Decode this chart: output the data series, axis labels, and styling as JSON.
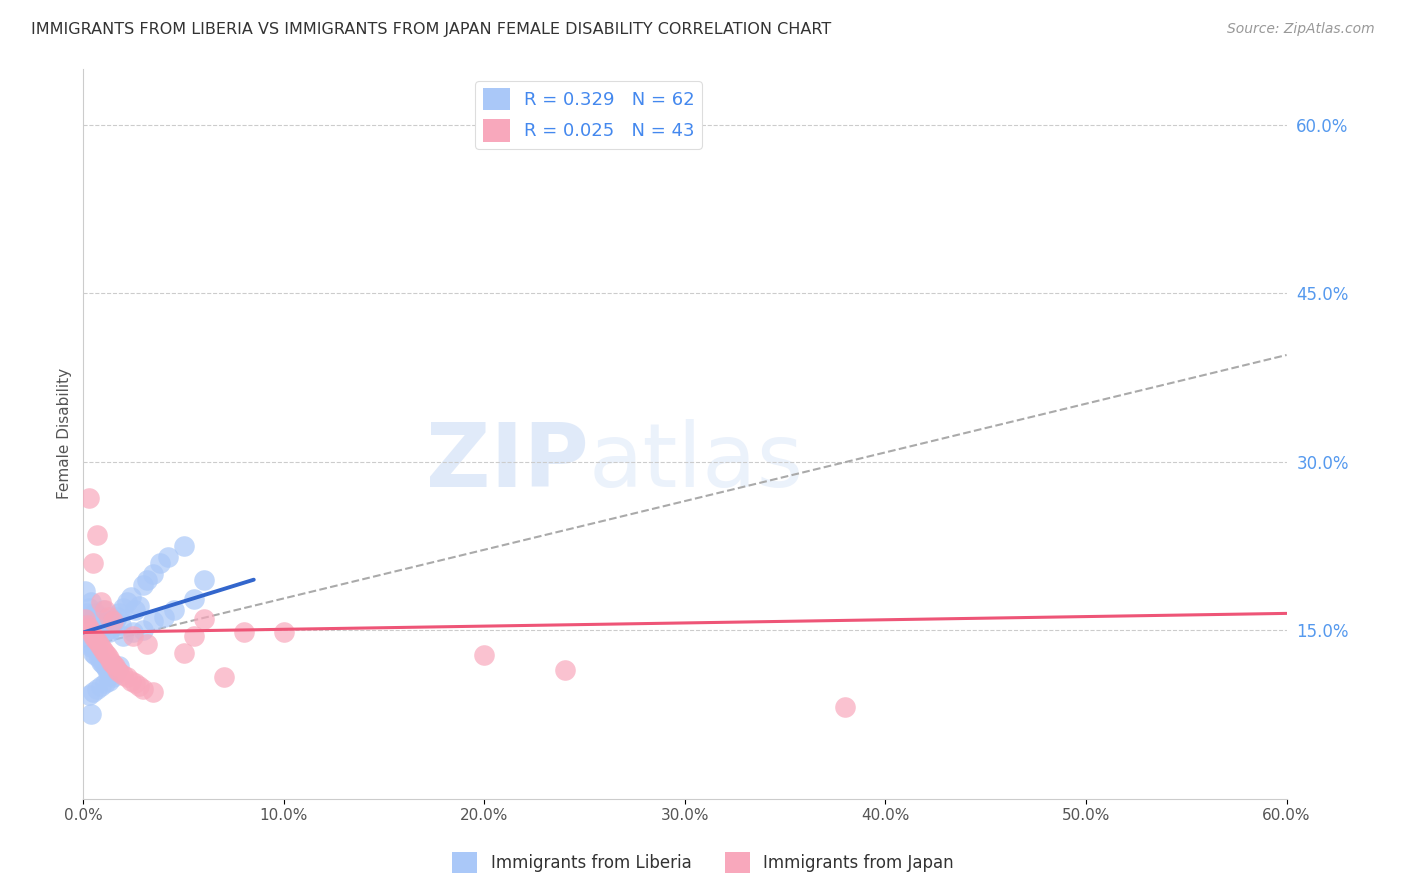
{
  "title": "IMMIGRANTS FROM LIBERIA VS IMMIGRANTS FROM JAPAN FEMALE DISABILITY CORRELATION CHART",
  "source": "Source: ZipAtlas.com",
  "ylabel": "Female Disability",
  "legend_label1": "Immigrants from Liberia",
  "legend_label2": "Immigrants from Japan",
  "R1": 0.329,
  "N1": 62,
  "R2": 0.025,
  "N2": 43,
  "color1": "#aac8f8",
  "color2": "#f8a8bc",
  "color1_line": "#3366cc",
  "color2_line": "#ee5577",
  "xlim": [
    0.0,
    0.6
  ],
  "ylim": [
    0.0,
    0.65
  ],
  "xtick_labels": [
    "0.0%",
    "10.0%",
    "20.0%",
    "30.0%",
    "40.0%",
    "50.0%",
    "60.0%"
  ],
  "xtick_values": [
    0.0,
    0.1,
    0.2,
    0.3,
    0.4,
    0.5,
    0.6
  ],
  "ytick_right_values": [
    0.15,
    0.3,
    0.45,
    0.6
  ],
  "ytick_right_labels": [
    "15.0%",
    "30.0%",
    "45.0%",
    "60.0%"
  ],
  "background_color": "#ffffff",
  "watermark_zip": "ZIP",
  "watermark_atlas": "atlas",
  "liberia_x": [
    0.001,
    0.002,
    0.003,
    0.004,
    0.005,
    0.006,
    0.007,
    0.008,
    0.009,
    0.01,
    0.011,
    0.012,
    0.013,
    0.014,
    0.015,
    0.016,
    0.017,
    0.018,
    0.019,
    0.02,
    0.022,
    0.024,
    0.026,
    0.028,
    0.03,
    0.032,
    0.035,
    0.038,
    0.042,
    0.05,
    0.002,
    0.003,
    0.004,
    0.005,
    0.006,
    0.007,
    0.008,
    0.009,
    0.01,
    0.011,
    0.012,
    0.013,
    0.014,
    0.015,
    0.016,
    0.017,
    0.018,
    0.003,
    0.005,
    0.007,
    0.009,
    0.011,
    0.013,
    0.02,
    0.025,
    0.03,
    0.035,
    0.04,
    0.045,
    0.055,
    0.004,
    0.06
  ],
  "liberia_y": [
    0.185,
    0.165,
    0.17,
    0.175,
    0.16,
    0.165,
    0.155,
    0.158,
    0.162,
    0.168,
    0.155,
    0.15,
    0.148,
    0.152,
    0.16,
    0.158,
    0.162,
    0.165,
    0.155,
    0.17,
    0.175,
    0.18,
    0.168,
    0.172,
    0.19,
    0.195,
    0.2,
    0.21,
    0.215,
    0.225,
    0.14,
    0.138,
    0.135,
    0.13,
    0.128,
    0.132,
    0.125,
    0.122,
    0.12,
    0.118,
    0.115,
    0.112,
    0.11,
    0.108,
    0.113,
    0.115,
    0.118,
    0.092,
    0.095,
    0.098,
    0.1,
    0.103,
    0.105,
    0.145,
    0.148,
    0.15,
    0.158,
    0.162,
    0.168,
    0.178,
    0.075,
    0.195
  ],
  "japan_x": [
    0.001,
    0.002,
    0.003,
    0.004,
    0.005,
    0.006,
    0.007,
    0.008,
    0.009,
    0.01,
    0.011,
    0.012,
    0.013,
    0.014,
    0.015,
    0.016,
    0.017,
    0.018,
    0.02,
    0.022,
    0.024,
    0.026,
    0.028,
    0.03,
    0.035,
    0.055,
    0.06,
    0.08,
    0.1,
    0.38,
    0.003,
    0.005,
    0.007,
    0.009,
    0.011,
    0.013,
    0.015,
    0.025,
    0.032,
    0.05,
    0.07,
    0.2,
    0.24
  ],
  "japan_y": [
    0.16,
    0.155,
    0.152,
    0.148,
    0.145,
    0.142,
    0.14,
    0.138,
    0.135,
    0.132,
    0.13,
    0.128,
    0.125,
    0.122,
    0.12,
    0.118,
    0.115,
    0.113,
    0.11,
    0.108,
    0.105,
    0.103,
    0.1,
    0.098,
    0.095,
    0.145,
    0.16,
    0.148,
    0.148,
    0.082,
    0.268,
    0.21,
    0.235,
    0.175,
    0.168,
    0.162,
    0.158,
    0.145,
    0.138,
    0.13,
    0.108,
    0.128,
    0.115
  ],
  "trend1_x0": 0.0,
  "trend1_y0": 0.148,
  "trend1_x1": 0.085,
  "trend1_y1": 0.195,
  "trend2_x0": 0.0,
  "trend2_y0": 0.148,
  "trend2_x1": 0.6,
  "trend2_y1": 0.165,
  "trend3_x0": 0.0,
  "trend3_y0": 0.135,
  "trend3_x1": 0.6,
  "trend3_y1": 0.395
}
